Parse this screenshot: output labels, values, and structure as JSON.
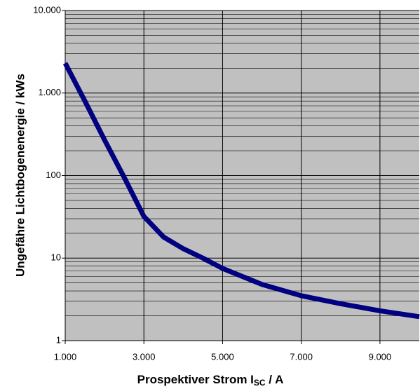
{
  "chart_data": {
    "type": "line",
    "xlabel": [
      "Prospektiver Strom I",
      "SC",
      " / A"
    ],
    "ylabel": "Ungefähre Lichtbogenenergie / kWs",
    "log_y": true,
    "grid": true,
    "background": "#c0c0c0",
    "xlim": [
      1000,
      10000
    ],
    "xticks": [
      {
        "value": 1000,
        "label": "1.000"
      },
      {
        "value": 3000,
        "label": "3.000"
      },
      {
        "value": 5000,
        "label": "5.000"
      },
      {
        "value": 7000,
        "label": "7.000"
      },
      {
        "value": 9000,
        "label": "9.000"
      }
    ],
    "ylim": [
      1,
      10000
    ],
    "yticks": [
      1,
      10,
      100,
      {
        "value": 1000,
        "label": "1.000"
      },
      {
        "value": 10000,
        "label": "10.000"
      }
    ],
    "minor_yticks": [
      2,
      3,
      4,
      5,
      6,
      7,
      8,
      9,
      20,
      30,
      40,
      50,
      60,
      70,
      80,
      90,
      200,
      300,
      400,
      500,
      600,
      700,
      800,
      900,
      2000,
      3000,
      4000,
      5000,
      6000,
      7000,
      8000,
      9000
    ],
    "x": [
      1000,
      1500,
      2000,
      2500,
      3000,
      3500,
      4000,
      4500,
      5000,
      6000,
      7000,
      8000,
      9000,
      10000
    ],
    "series": [
      {
        "color": "#000080",
        "values": [
          2300,
          800,
          270,
          95,
          32,
          18,
          13,
          10,
          7.5,
          4.8,
          3.5,
          2.8,
          2.3,
          1.95
        ]
      }
    ]
  }
}
